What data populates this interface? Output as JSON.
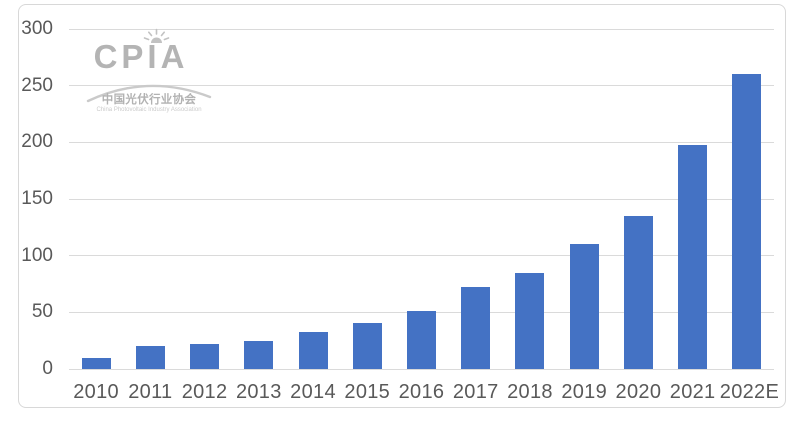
{
  "watermark": {
    "brand": "CPIA",
    "brand_cn": "中国光伏行业协会",
    "brand_en": "China Photovoltaic Industry Association"
  },
  "chart_data": {
    "type": "bar",
    "title": "",
    "xlabel": "",
    "ylabel": "",
    "categories": [
      "2010",
      "2011",
      "2012",
      "2013",
      "2014",
      "2015",
      "2016",
      "2017",
      "2018",
      "2019",
      "2020",
      "2021",
      "2022E"
    ],
    "values": [
      10,
      20,
      22,
      25,
      33,
      41,
      51,
      72,
      85,
      110,
      135,
      198,
      260
    ],
    "ylim": [
      0,
      300
    ],
    "yticks": [
      0,
      50,
      100,
      150,
      200,
      250,
      300
    ],
    "grid": true,
    "legend": "none",
    "bar_color": "#4472c4",
    "gridline_color": "#dadada",
    "label_color": "#595959",
    "border_color": "#d8d8d8"
  }
}
